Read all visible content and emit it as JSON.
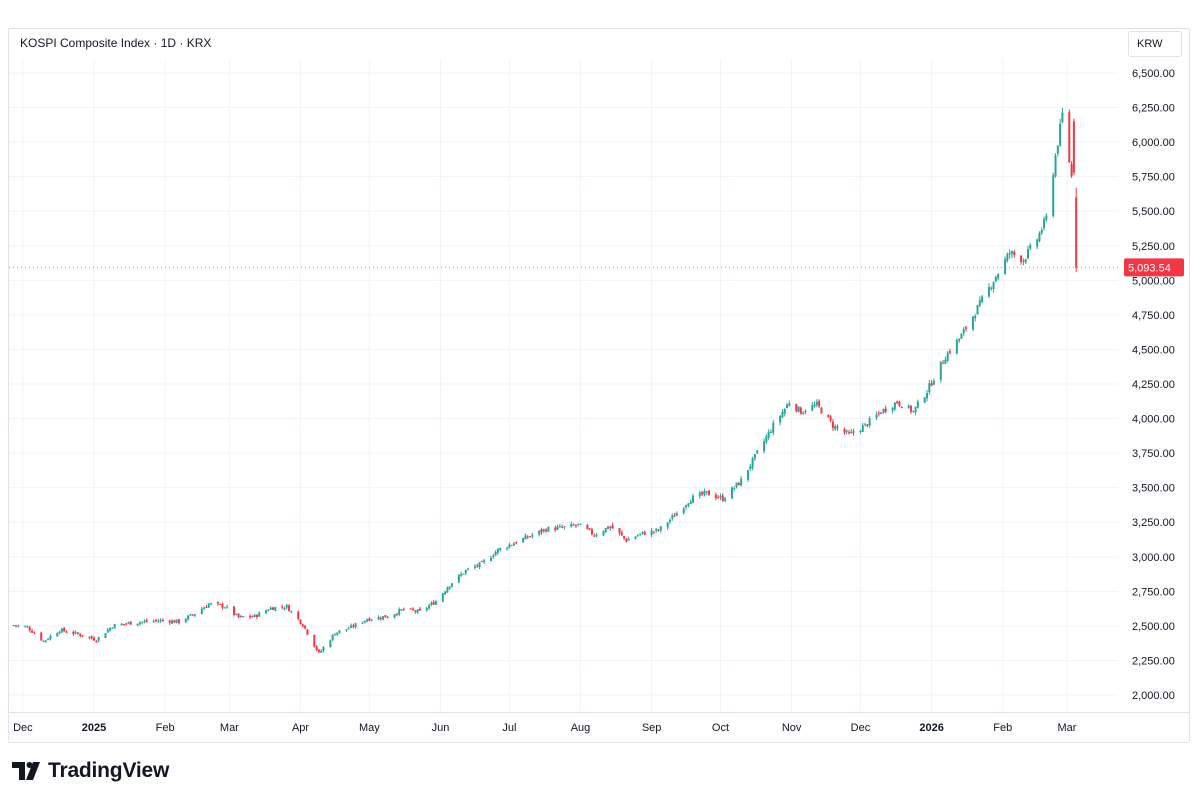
{
  "header": {
    "title": "KOSPI Composite Index · 1D · KRX",
    "currency_label": "KRW"
  },
  "brand": {
    "name": "TradingView",
    "logo_icon": "tradingview-logo-icon"
  },
  "colors": {
    "up": "#26a69a",
    "down": "#f23645",
    "grid": "#f0f3fa",
    "text": "#131722",
    "last_price_bg": "#f23645"
  },
  "chart_data": {
    "type": "candlestick",
    "title": "KOSPI Composite Index · 1D · KRX",
    "xlabel": "",
    "ylabel": "",
    "ylim": [
      1900,
      6650
    ],
    "grid": true,
    "last_price": 5093.54,
    "last_price_label": "5,093.54",
    "y_ticks": [
      {
        "value": 2000,
        "label": "2,000.00"
      },
      {
        "value": 2250,
        "label": "2,250.00"
      },
      {
        "value": 2500,
        "label": "2,500.00"
      },
      {
        "value": 2750,
        "label": "2,750.00"
      },
      {
        "value": 3000,
        "label": "3,000.00"
      },
      {
        "value": 3250,
        "label": "3,250.00"
      },
      {
        "value": 3500,
        "label": "3,500.00"
      },
      {
        "value": 3750,
        "label": "3,750.00"
      },
      {
        "value": 4000,
        "label": "4,000.00"
      },
      {
        "value": 4250,
        "label": "4,250.00"
      },
      {
        "value": 4500,
        "label": "4,500.00"
      },
      {
        "value": 4750,
        "label": "4,750.00"
      },
      {
        "value": 5000,
        "label": "5,000.00"
      },
      {
        "value": 5250,
        "label": "5,250.00"
      },
      {
        "value": 5500,
        "label": "5,500.00"
      },
      {
        "value": 5750,
        "label": "5,750.00"
      },
      {
        "value": 6000,
        "label": "6,000.00"
      },
      {
        "value": 6250,
        "label": "6,250.00"
      },
      {
        "value": 6500,
        "label": "6,500.00"
      }
    ],
    "x_ticks": [
      {
        "date": "2024-12-01",
        "label": "Dec",
        "bold": false
      },
      {
        "date": "2025-01-01",
        "label": "2025",
        "bold": true
      },
      {
        "date": "2025-02-01",
        "label": "Feb",
        "bold": false
      },
      {
        "date": "2025-03-01",
        "label": "Mar",
        "bold": false
      },
      {
        "date": "2025-04-01",
        "label": "Apr",
        "bold": false
      },
      {
        "date": "2025-05-01",
        "label": "May",
        "bold": false
      },
      {
        "date": "2025-06-01",
        "label": "Jun",
        "bold": false
      },
      {
        "date": "2025-07-01",
        "label": "Jul",
        "bold": false
      },
      {
        "date": "2025-08-01",
        "label": "Aug",
        "bold": false
      },
      {
        "date": "2025-09-01",
        "label": "Sep",
        "bold": false
      },
      {
        "date": "2025-10-01",
        "label": "Oct",
        "bold": false
      },
      {
        "date": "2025-11-01",
        "label": "Nov",
        "bold": false
      },
      {
        "date": "2025-12-01",
        "label": "Dec",
        "bold": false
      },
      {
        "date": "2026-01-01",
        "label": "2026",
        "bold": true
      },
      {
        "date": "2026-02-01",
        "label": "Feb",
        "bold": false
      },
      {
        "date": "2026-03-01",
        "label": "Mar",
        "bold": false
      }
    ],
    "series": [
      {
        "name": "",
        "closes": [
          [
            "2024-11-27",
            2505
          ],
          [
            "2024-12-03",
            2490
          ],
          [
            "2024-12-10",
            2390
          ],
          [
            "2024-12-17",
            2470
          ],
          [
            "2024-12-24",
            2445
          ],
          [
            "2025-01-02",
            2400
          ],
          [
            "2025-01-09",
            2500
          ],
          [
            "2025-01-16",
            2520
          ],
          [
            "2025-01-23",
            2530
          ],
          [
            "2025-01-31",
            2540
          ],
          [
            "2025-02-07",
            2530
          ],
          [
            "2025-02-14",
            2590
          ],
          [
            "2025-02-20",
            2660
          ],
          [
            "2025-02-27",
            2640
          ],
          [
            "2025-03-05",
            2560
          ],
          [
            "2025-03-12",
            2570
          ],
          [
            "2025-03-19",
            2630
          ],
          [
            "2025-03-26",
            2640
          ],
          [
            "2025-04-02",
            2510
          ],
          [
            "2025-04-09",
            2300
          ],
          [
            "2025-04-16",
            2450
          ],
          [
            "2025-04-23",
            2490
          ],
          [
            "2025-04-30",
            2550
          ],
          [
            "2025-05-09",
            2570
          ],
          [
            "2025-05-16",
            2620
          ],
          [
            "2025-05-23",
            2600
          ],
          [
            "2025-05-30",
            2680
          ],
          [
            "2025-06-05",
            2800
          ],
          [
            "2025-06-12",
            2900
          ],
          [
            "2025-06-19",
            2950
          ],
          [
            "2025-06-26",
            3050
          ],
          [
            "2025-07-03",
            3100
          ],
          [
            "2025-07-10",
            3150
          ],
          [
            "2025-07-17",
            3200
          ],
          [
            "2025-07-24",
            3210
          ],
          [
            "2025-07-31",
            3230
          ],
          [
            "2025-08-07",
            3160
          ],
          [
            "2025-08-14",
            3220
          ],
          [
            "2025-08-21",
            3120
          ],
          [
            "2025-08-28",
            3170
          ],
          [
            "2025-09-04",
            3190
          ],
          [
            "2025-09-11",
            3300
          ],
          [
            "2025-09-18",
            3420
          ],
          [
            "2025-09-25",
            3460
          ],
          [
            "2025-10-02",
            3420
          ],
          [
            "2025-10-10",
            3550
          ],
          [
            "2025-10-17",
            3750
          ],
          [
            "2025-10-24",
            3950
          ],
          [
            "2025-10-31",
            4120
          ],
          [
            "2025-11-05",
            4050
          ],
          [
            "2025-11-12",
            4100
          ],
          [
            "2025-11-19",
            3950
          ],
          [
            "2025-11-26",
            3880
          ],
          [
            "2025-12-03",
            3950
          ],
          [
            "2025-12-10",
            4050
          ],
          [
            "2025-12-17",
            4120
          ],
          [
            "2025-12-24",
            4050
          ],
          [
            "2025-12-30",
            4200
          ],
          [
            "2026-01-07",
            4450
          ],
          [
            "2026-01-14",
            4600
          ],
          [
            "2026-01-21",
            4800
          ],
          [
            "2026-01-28",
            5000
          ],
          [
            "2026-02-04",
            5200
          ],
          [
            "2026-02-10",
            5150
          ],
          [
            "2026-02-16",
            5300
          ],
          [
            "2026-02-20",
            5450
          ],
          [
            "2026-02-24",
            5900
          ],
          [
            "2026-02-27",
            6200
          ],
          [
            "2026-03-03",
            5750
          ],
          [
            "2026-03-05",
            5093.54
          ]
        ]
      }
    ]
  }
}
